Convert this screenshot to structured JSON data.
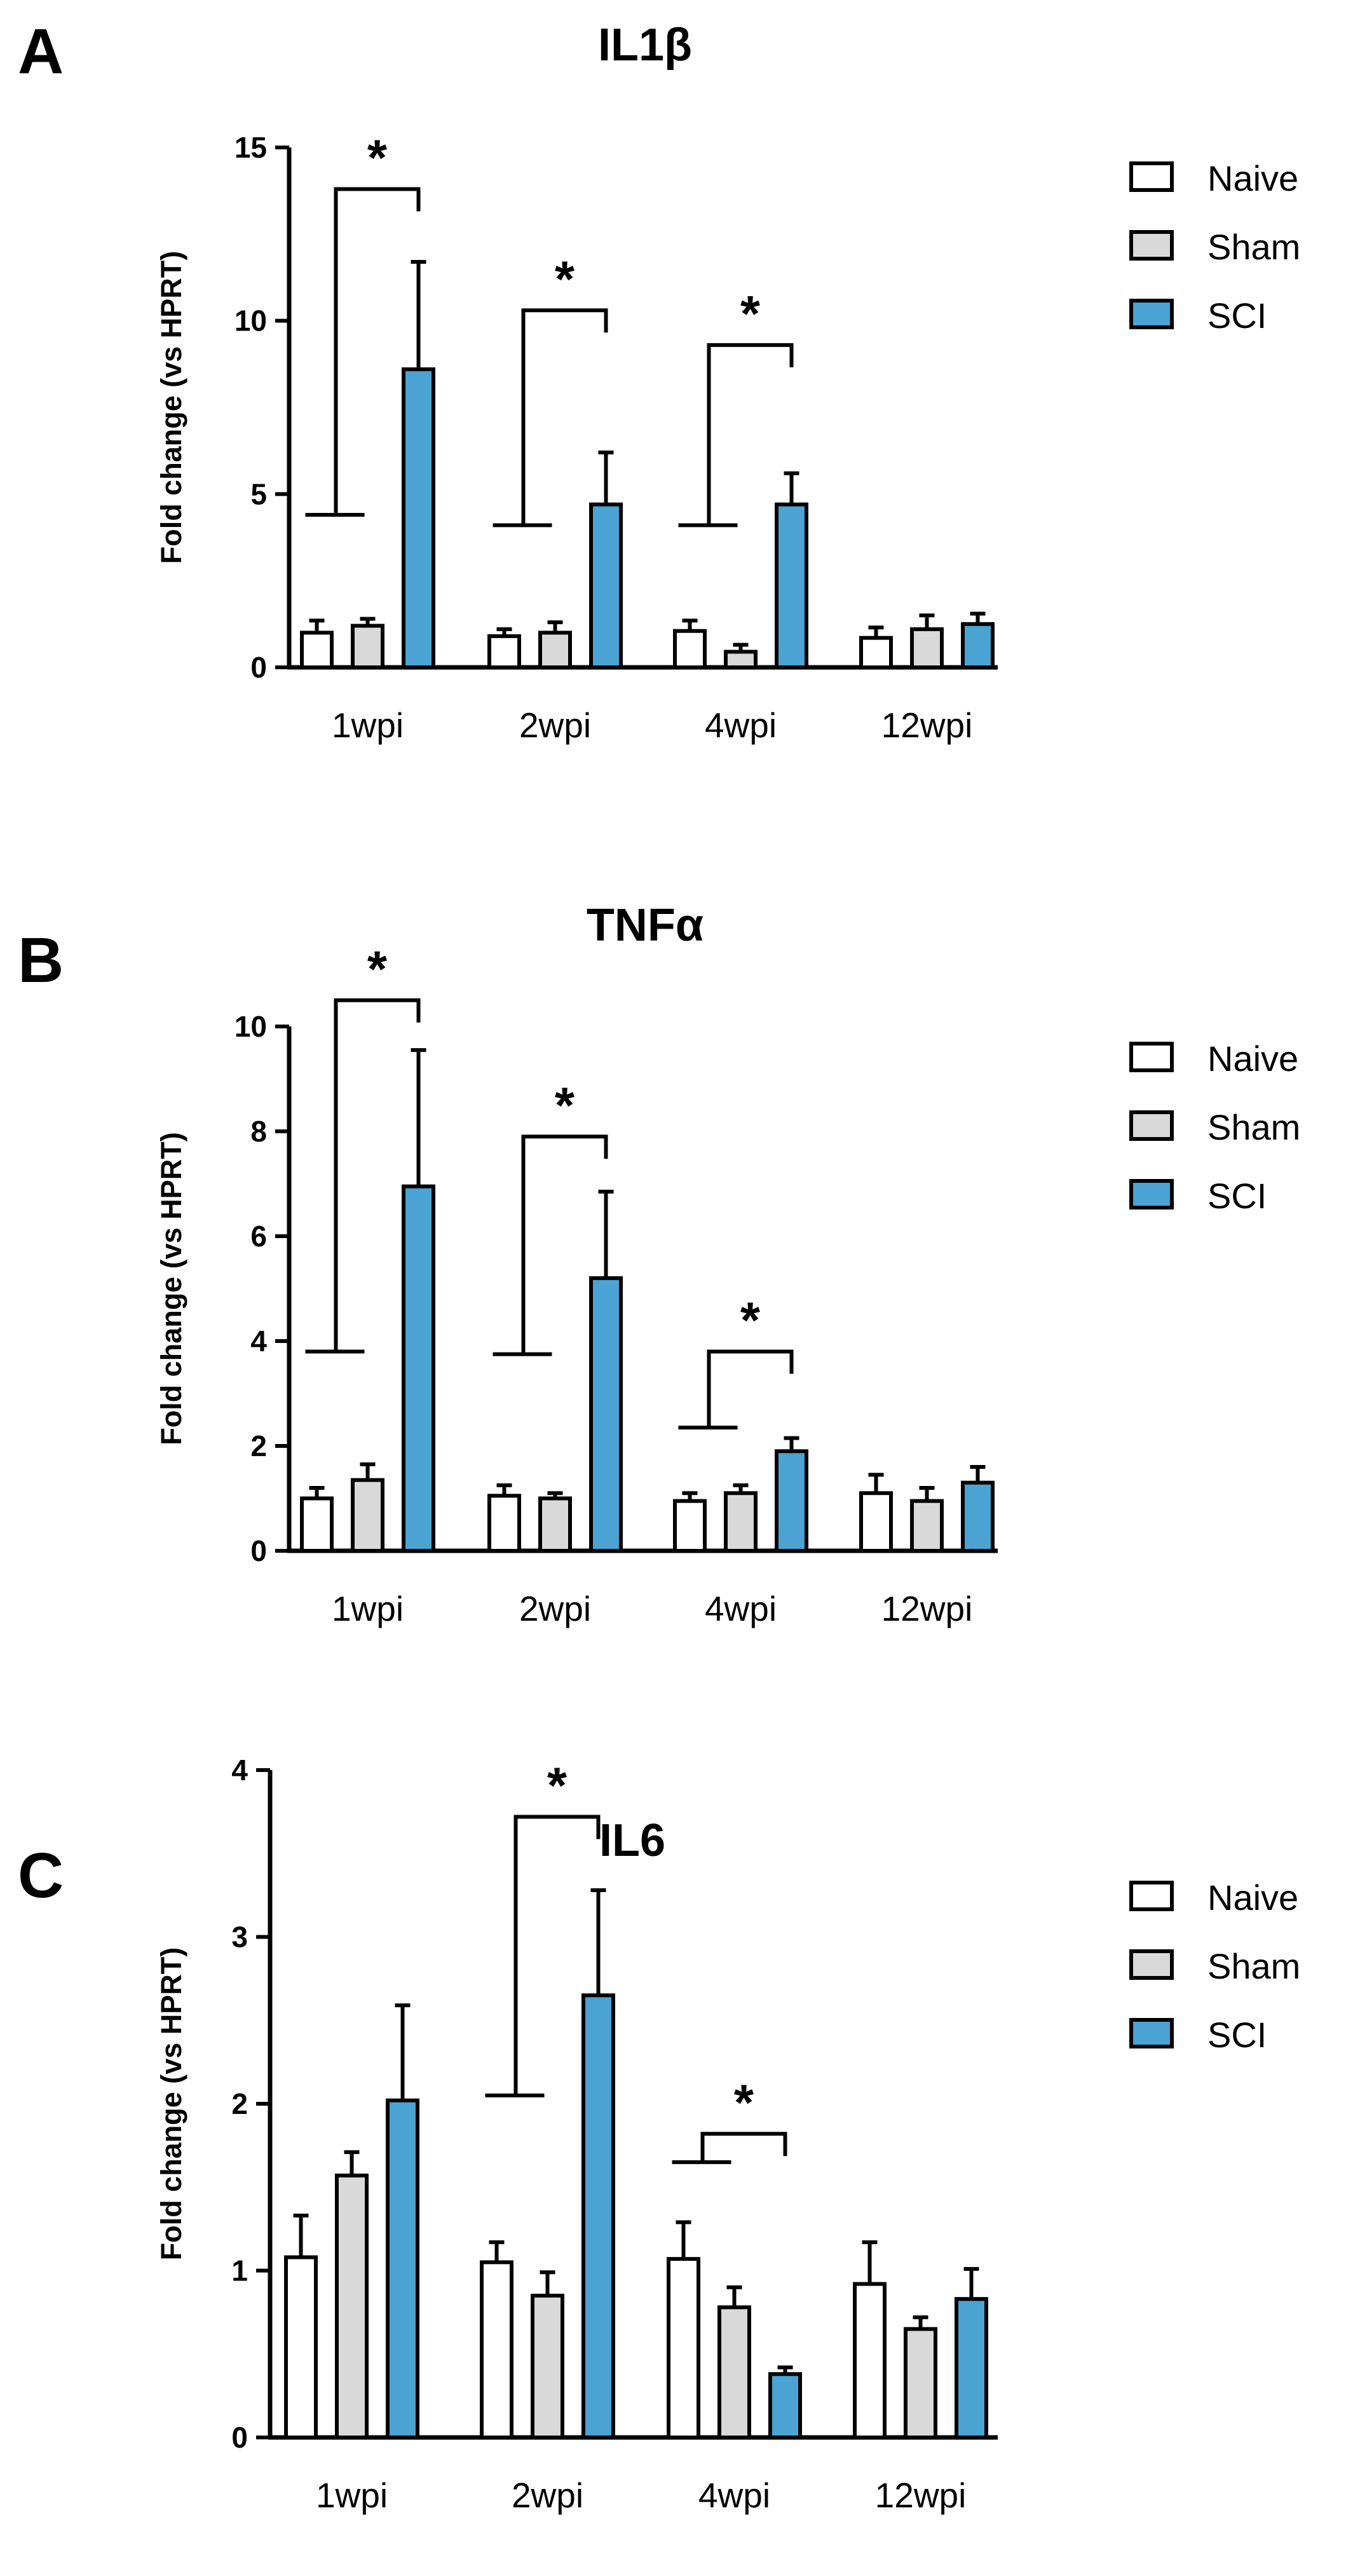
{
  "colors": {
    "Naive": "#ffffff",
    "Sham": "#d9d9d9",
    "SCI": "#4aa3d2"
  },
  "chart_data": [
    {
      "type": "bar",
      "panel": "A",
      "title": "IL1β",
      "ylabel": "Fold change (vs HPRT)",
      "ylim": [
        0,
        15
      ],
      "yticks": [
        0,
        5,
        10,
        15
      ],
      "legend_position": "top-right",
      "categories": [
        "1wpi",
        "2wpi",
        "4wpi",
        "12wpi"
      ],
      "series": [
        {
          "name": "Naive",
          "values": [
            1.0,
            0.9,
            1.05,
            0.85
          ],
          "errors": [
            0.35,
            0.2,
            0.3,
            0.3
          ]
        },
        {
          "name": "Sham",
          "values": [
            1.2,
            1.0,
            0.45,
            1.1
          ],
          "errors": [
            0.2,
            0.3,
            0.2,
            0.4
          ]
        },
        {
          "name": "SCI",
          "values": [
            8.6,
            4.7,
            4.7,
            1.25
          ],
          "errors": [
            3.1,
            1.5,
            0.9,
            0.3
          ]
        }
      ],
      "significance": [
        {
          "category": "1wpi",
          "label": "*",
          "from": [
            "Naive",
            "Sham"
          ],
          "to": "SCI",
          "bracket_y": 13.8,
          "left_y": 4.4
        },
        {
          "category": "2wpi",
          "label": "*",
          "from": [
            "Naive",
            "Sham"
          ],
          "to": "SCI",
          "bracket_y": 10.3,
          "left_y": 4.1
        },
        {
          "category": "4wpi",
          "label": "*",
          "from": [
            "Naive",
            "Sham"
          ],
          "to": "SCI",
          "bracket_y": 9.3,
          "left_y": 4.1
        }
      ]
    },
    {
      "type": "bar",
      "panel": "B",
      "title": "TNFα",
      "ylabel": "Fold change (vs HPRT)",
      "ylim": [
        0,
        10
      ],
      "yticks": [
        0,
        2,
        4,
        6,
        8,
        10
      ],
      "legend_position": "top-right",
      "categories": [
        "1wpi",
        "2wpi",
        "4wpi",
        "12wpi"
      ],
      "series": [
        {
          "name": "Naive",
          "values": [
            1.0,
            1.05,
            0.95,
            1.1
          ],
          "errors": [
            0.2,
            0.2,
            0.15,
            0.35
          ]
        },
        {
          "name": "Sham",
          "values": [
            1.35,
            1.0,
            1.1,
            0.95
          ],
          "errors": [
            0.3,
            0.1,
            0.15,
            0.25
          ]
        },
        {
          "name": "SCI",
          "values": [
            6.95,
            5.2,
            1.9,
            1.3
          ],
          "errors": [
            2.6,
            1.65,
            0.25,
            0.3
          ]
        }
      ],
      "significance": [
        {
          "category": "1wpi",
          "label": "*",
          "from": [
            "Naive",
            "Sham"
          ],
          "to": "SCI",
          "bracket_y": 10.5,
          "left_y": 3.8
        },
        {
          "category": "2wpi",
          "label": "*",
          "from": [
            "Naive",
            "Sham"
          ],
          "to": "SCI",
          "bracket_y": 7.9,
          "left_y": 3.75
        },
        {
          "category": "4wpi",
          "label": "*",
          "from": [
            "Naive",
            "Sham"
          ],
          "to": "SCI",
          "bracket_y": 3.8,
          "left_y": 2.35
        }
      ]
    },
    {
      "type": "bar",
      "panel": "C",
      "title": "IL6",
      "ylabel": "Fold change (vs HPRT)",
      "ylim": [
        0,
        4
      ],
      "yticks": [
        0,
        1,
        2,
        3,
        4
      ],
      "legend_position": "top-right",
      "categories": [
        "1wpi",
        "2wpi",
        "4wpi",
        "12wpi"
      ],
      "series": [
        {
          "name": "Naive",
          "values": [
            1.08,
            1.05,
            1.07,
            0.92
          ],
          "errors": [
            0.25,
            0.12,
            0.22,
            0.25
          ]
        },
        {
          "name": "Sham",
          "values": [
            1.57,
            0.85,
            0.78,
            0.65
          ],
          "errors": [
            0.14,
            0.14,
            0.12,
            0.07
          ]
        },
        {
          "name": "SCI",
          "values": [
            2.02,
            2.65,
            0.38,
            0.83
          ],
          "errors": [
            0.57,
            0.63,
            0.04,
            0.18
          ]
        }
      ],
      "significance": [
        {
          "category": "2wpi",
          "label": "*",
          "from": [
            "Naive",
            "Sham"
          ],
          "to": "SCI",
          "bracket_y": 3.72,
          "left_y": 2.05
        },
        {
          "category": "4wpi",
          "label": "*",
          "from": [
            "Naive",
            "Sham"
          ],
          "to": "SCI",
          "bracket_y": 1.82,
          "left_y": 1.65
        }
      ]
    }
  ]
}
